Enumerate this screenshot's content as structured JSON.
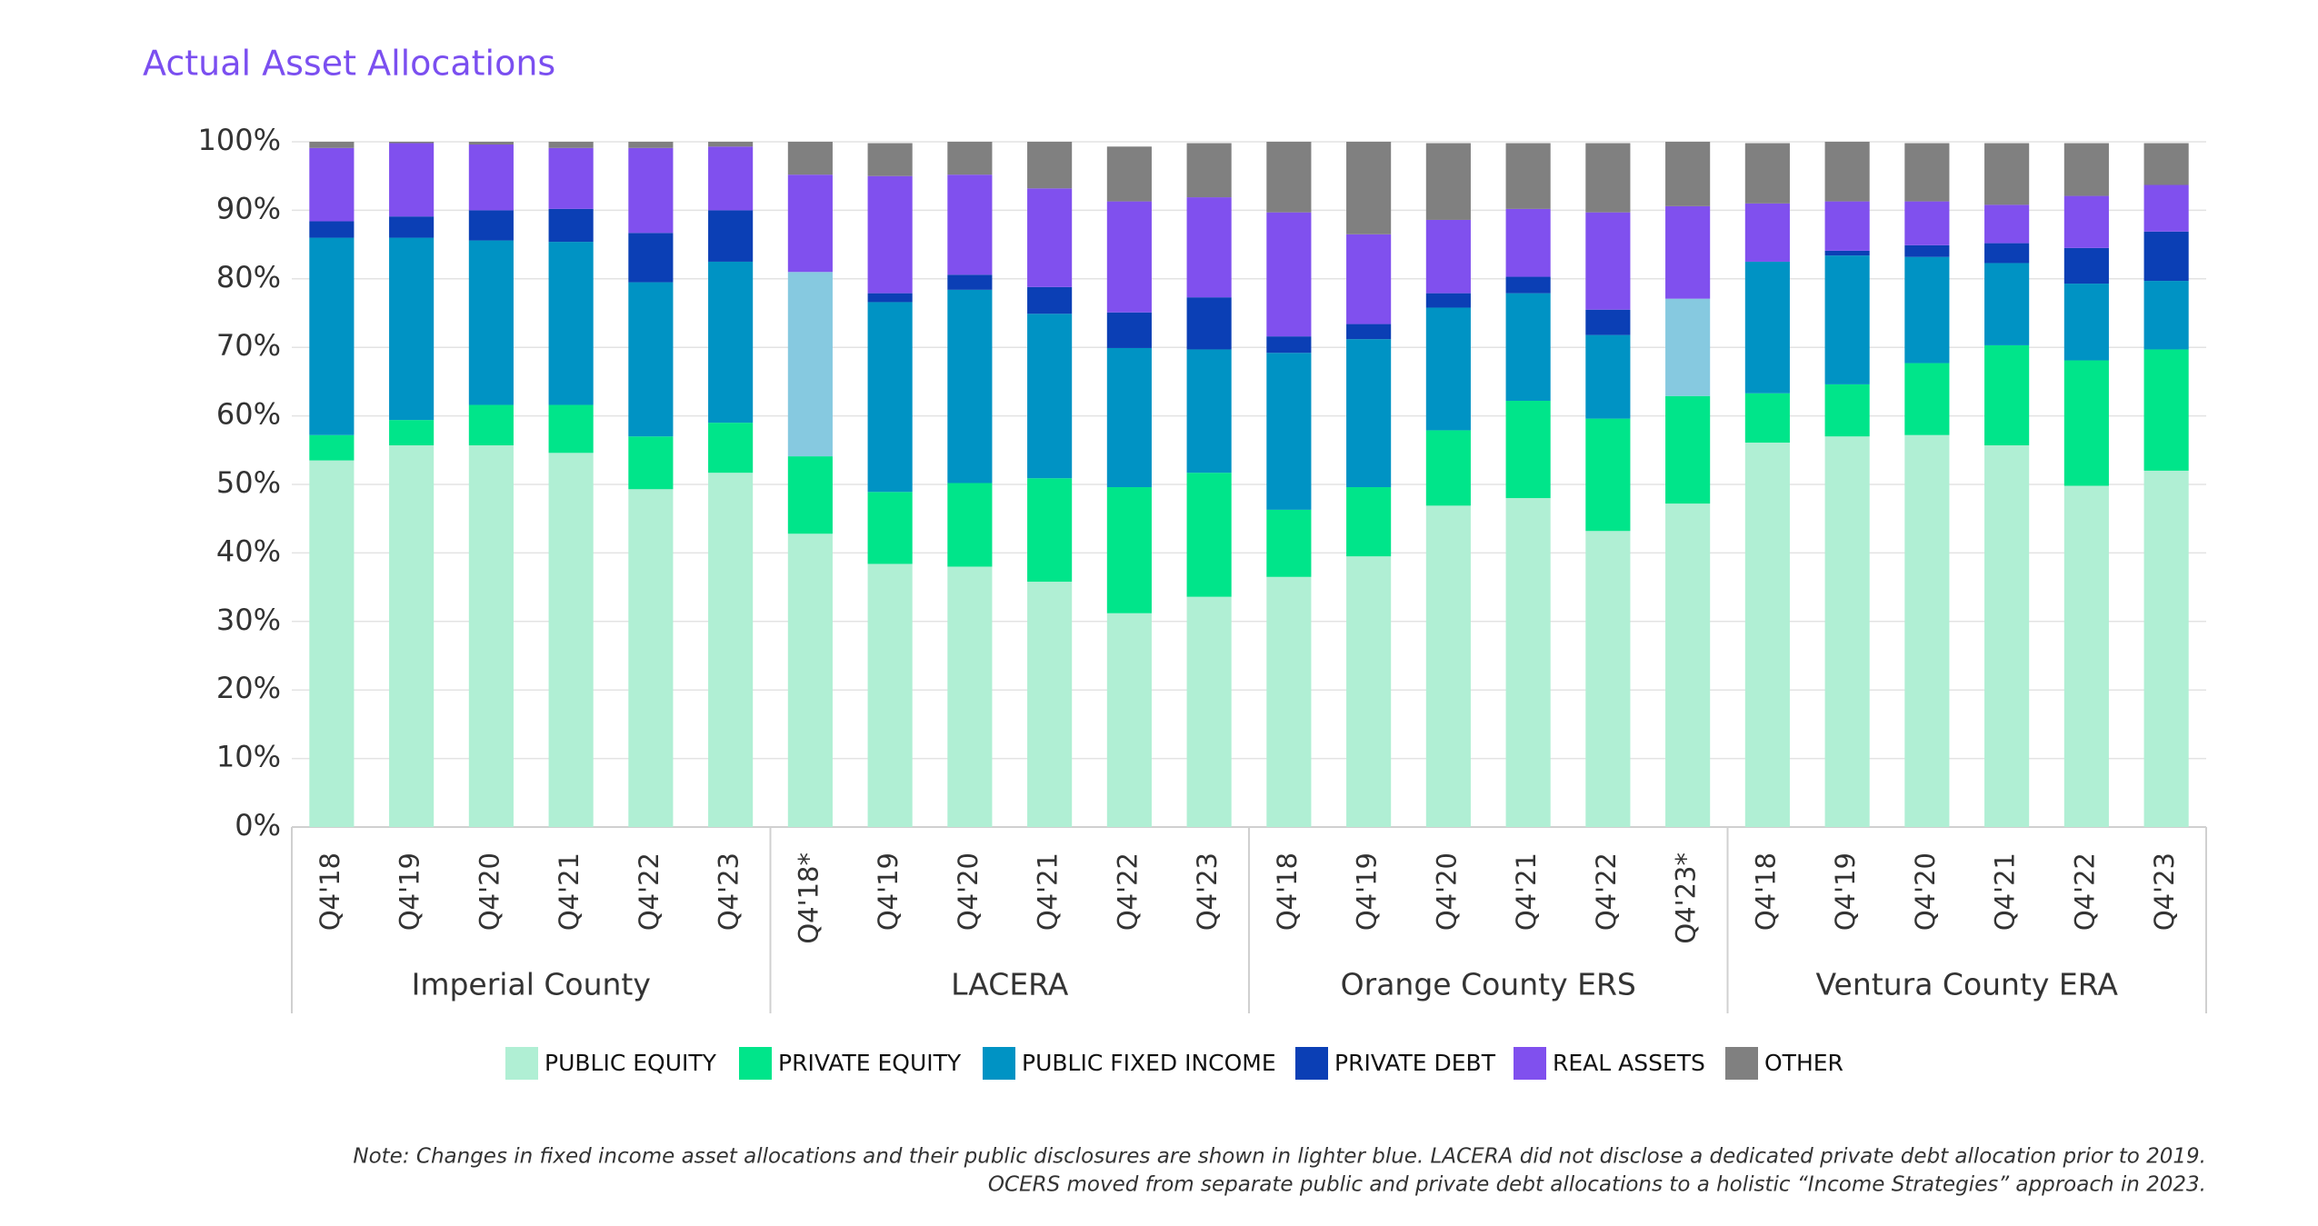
{
  "chart_data": {
    "type": "stacked_bar",
    "title": "Actual Asset Allocations",
    "groups": [
      {
        "name": "Imperial County",
        "categories": [
          "Q4'18",
          "Q4'19",
          "Q4'20",
          "Q4'21",
          "Q4'22",
          "Q4'23"
        ]
      },
      {
        "name": "LACERA",
        "categories": [
          "Q4'18*",
          "Q4'19",
          "Q4'20",
          "Q4'21",
          "Q4'22",
          "Q4'23"
        ]
      },
      {
        "name": "Orange County ERS",
        "categories": [
          "Q4'18",
          "Q4'19",
          "Q4'20",
          "Q4'21",
          "Q4'22",
          "Q4'23*"
        ]
      },
      {
        "name": "Ventura County ERA",
        "categories": [
          "Q4'18",
          "Q4'19",
          "Q4'20",
          "Q4'21",
          "Q4'22",
          "Q4'23"
        ]
      }
    ],
    "series": [
      {
        "name": "PUBLIC EQUITY",
        "color": "#b0efd4",
        "values": [
          53.5,
          55.7,
          55.7,
          54.6,
          49.3,
          51.7,
          42.8,
          38.4,
          38.0,
          35.8,
          31.2,
          33.6,
          36.5,
          39.5,
          46.9,
          48.0,
          43.2,
          47.2,
          56.1,
          57.0,
          57.2,
          55.7,
          49.8,
          52.0
        ]
      },
      {
        "name": "PRIVATE EQUITY",
        "color": "#00e58a",
        "values": [
          3.7,
          3.7,
          5.9,
          7.0,
          7.7,
          7.3,
          11.3,
          10.5,
          12.2,
          15.1,
          18.4,
          18.1,
          9.8,
          10.1,
          11.0,
          14.2,
          16.4,
          15.7,
          7.2,
          7.6,
          10.5,
          14.6,
          18.3,
          17.7
        ]
      },
      {
        "name": "PUBLIC FIXED INCOME",
        "color": "#0093c4",
        "colors": [
          "#0093c4",
          "#0093c4",
          "#0093c4",
          "#0093c4",
          "#0093c4",
          "#0093c4",
          "#86c9e0",
          "#0093c4",
          "#0093c4",
          "#0093c4",
          "#0093c4",
          "#0093c4",
          "#0093c4",
          "#0093c4",
          "#0093c4",
          "#0093c4",
          "#0093c4",
          "#86c9e0",
          "#0093c4",
          "#0093c4",
          "#0093c4",
          "#0093c4",
          "#0093c4",
          "#0093c4"
        ],
        "values": [
          28.8,
          26.6,
          24.0,
          23.8,
          22.5,
          23.5,
          26.9,
          27.7,
          28.2,
          24.0,
          20.3,
          18.0,
          22.9,
          21.6,
          17.9,
          15.7,
          12.2,
          14.2,
          19.2,
          18.8,
          15.5,
          12.0,
          11.2,
          10.0
        ]
      },
      {
        "name": "PRIVATE DEBT",
        "color": "#0b3fb5",
        "values": [
          2.4,
          3.1,
          4.4,
          4.8,
          7.2,
          7.5,
          0,
          1.3,
          2.2,
          3.9,
          5.2,
          7.6,
          2.4,
          2.2,
          2.1,
          2.4,
          3.7,
          0,
          0,
          0.7,
          1.7,
          2.9,
          5.2,
          7.2
        ]
      },
      {
        "name": "REAL ASSETS",
        "color": "#8050ee",
        "values": [
          10.7,
          10.7,
          9.6,
          8.9,
          12.4,
          9.3,
          14.2,
          17.1,
          14.6,
          14.4,
          16.2,
          14.6,
          18.1,
          13.1,
          10.7,
          9.9,
          14.2,
          13.5,
          8.5,
          7.2,
          6.4,
          5.6,
          7.6,
          6.8
        ]
      },
      {
        "name": "OTHER",
        "color": "#808080",
        "values": [
          0.9,
          0.2,
          0.4,
          0.9,
          0.9,
          0.7,
          4.8,
          4.8,
          4.8,
          6.8,
          8.0,
          7.9,
          10.3,
          13.5,
          11.2,
          9.6,
          10.1,
          9.4,
          8.8,
          8.7,
          8.5,
          9.0,
          7.7,
          6.1
        ]
      }
    ],
    "ylim": [
      0,
      100
    ],
    "yticks": [
      {
        "value": 0,
        "label": "0%"
      },
      {
        "value": 10,
        "label": "10%"
      },
      {
        "value": 20,
        "label": "20%"
      },
      {
        "value": 30,
        "label": "30%"
      },
      {
        "value": 40,
        "label": "40%"
      },
      {
        "value": 50,
        "label": "50%"
      },
      {
        "value": 60,
        "label": "60%"
      },
      {
        "value": 70,
        "label": "70%"
      },
      {
        "value": 80,
        "label": "80%"
      },
      {
        "value": 90,
        "label": "90%"
      },
      {
        "value": 100,
        "label": "100%"
      }
    ],
    "grid": true,
    "legend": "bottom",
    "note": [
      "Note: Changes in fixed income asset allocations and their public disclosures are shown in lighter blue. LACERA did not disclose a dedicated private debt allocation prior to 2019.",
      "OCERS moved from separate public and private debt allocations to a holistic “Income Strategies” approach in 2023."
    ]
  }
}
